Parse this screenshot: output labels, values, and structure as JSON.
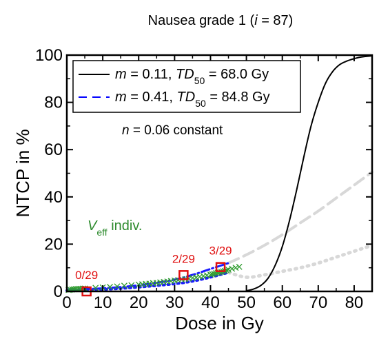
{
  "chart_data": {
    "type": "line",
    "title": {
      "pre": "Nausea grade 1 (",
      "var": "i",
      "post": " = 87)"
    },
    "xlabel": "Dose in Gy",
    "ylabel": "NTCP in %",
    "xlim": [
      0,
      85
    ],
    "ylim": [
      0,
      100
    ],
    "xticks": [
      0,
      10,
      20,
      30,
      40,
      50,
      60,
      70,
      80
    ],
    "yticks": [
      0,
      20,
      40,
      60,
      80,
      100
    ],
    "grid": false,
    "legend_position": "top-left",
    "legend": [
      {
        "m": "0.11",
        "td50": "68.0 Gy",
        "style": "solid",
        "color": "#000000"
      },
      {
        "m": "0.41",
        "td50": "84.8 Gy",
        "style": "dashed",
        "color": "#0000ff"
      }
    ],
    "note": "n = 0.06 constant",
    "veff_label": {
      "main": "V",
      "sub": "eff",
      "rest": " indiv."
    },
    "series": [
      {
        "style": "solid-black",
        "x": [
          50,
          52,
          54,
          56,
          58,
          60,
          62,
          64,
          66,
          68,
          70,
          72,
          74,
          76,
          78,
          80,
          82,
          85
        ],
        "y": [
          0.3,
          1.0,
          2.5,
          5.5,
          11,
          19,
          30,
          43,
          57,
          70,
          80,
          88,
          93,
          96,
          97.5,
          98.5,
          99.2,
          99.7
        ]
      },
      {
        "style": "dashdot-blue",
        "x": [
          0,
          10,
          20,
          30,
          35,
          40,
          45
        ],
        "y": [
          0.8,
          1.3,
          2.6,
          5,
          7,
          9.5,
          12
        ]
      },
      {
        "style": "dotted-blue",
        "x": [
          0,
          10,
          20,
          30,
          35,
          40,
          45
        ],
        "y": [
          0.3,
          0.8,
          1.8,
          3.2,
          4.3,
          6,
          8
        ]
      },
      {
        "style": "dashed-gray",
        "x": [
          45,
          50,
          55,
          60,
          65,
          70,
          75,
          80,
          85
        ],
        "y": [
          12,
          15.5,
          19.5,
          24,
          29,
          34,
          39.5,
          45,
          50.5
        ]
      },
      {
        "style": "dotted-gray",
        "x": [
          45,
          50,
          55,
          60,
          65,
          70,
          75,
          80,
          85
        ],
        "y": [
          8,
          6,
          7,
          8.5,
          10,
          12,
          14.5,
          17,
          19.5
        ]
      }
    ],
    "individual_points": {
      "x": [
        0.5,
        1,
        1.5,
        2,
        2.5,
        3,
        3.5,
        4,
        4.5,
        5,
        8,
        10,
        12,
        14,
        16,
        18,
        20,
        21,
        22,
        23,
        24,
        25,
        26,
        27,
        28,
        29,
        30,
        31,
        32,
        33,
        34,
        35,
        36,
        37,
        38,
        39,
        40,
        40.5,
        41,
        41.5,
        42,
        42.5,
        43,
        43.5,
        44,
        44.5,
        45,
        46,
        47,
        48
      ],
      "y": [
        0.6,
        0.7,
        0.8,
        0.9,
        1.0,
        1.0,
        1.1,
        1.1,
        1.2,
        1.2,
        1.5,
        1.7,
        1.9,
        2.1,
        2.4,
        2.6,
        2.9,
        3.0,
        3.2,
        3.3,
        3.5,
        3.6,
        3.8,
        4.0,
        4.2,
        4.4,
        4.6,
        4.8,
        5.0,
        5.2,
        5.4,
        5.7,
        5.9,
        6.2,
        6.5,
        6.8,
        7.1,
        7.3,
        7.5,
        7.7,
        7.9,
        8.1,
        8.3,
        8.5,
        8.7,
        8.9,
        9.2,
        9.6,
        10.0,
        10.4
      ]
    },
    "observed_bins": [
      {
        "x": 5.5,
        "y": 0.0,
        "label": "0/29"
      },
      {
        "x": 32.5,
        "y": 6.9,
        "label": "2/29"
      },
      {
        "x": 42.8,
        "y": 10.3,
        "label": "3/29"
      }
    ]
  }
}
